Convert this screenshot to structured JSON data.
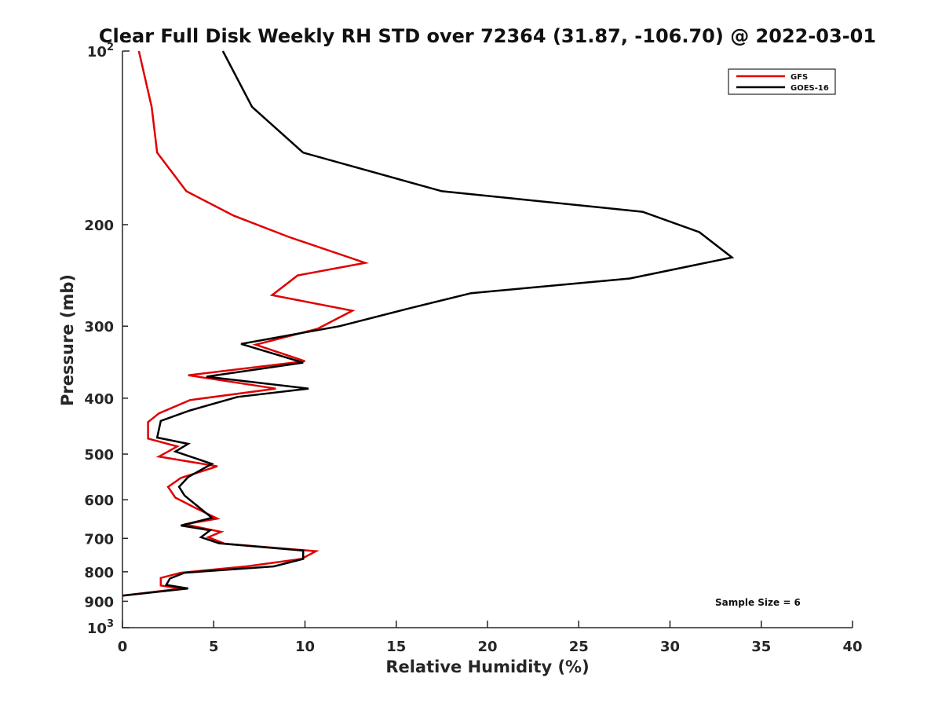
{
  "chart_data": {
    "type": "line",
    "title": "Clear Full Disk Weekly RH STD over 72364 (31.87, -106.70) @ 2022-03-01",
    "xlabel": "Relative Humidity (%)",
    "ylabel": "Pressure (mb)",
    "xlim": [
      0,
      40
    ],
    "ylim": [
      100,
      1000
    ],
    "y_scale": "log",
    "y_reversed": true,
    "x_ticks": [
      "0",
      "5",
      "10",
      "15",
      "20",
      "25",
      "30",
      "35",
      "40"
    ],
    "x_tick_values": [
      0,
      5,
      10,
      15,
      20,
      25,
      30,
      35,
      40
    ],
    "y_ticks": [
      {
        "value": 100,
        "base": "10",
        "exp": "2"
      },
      {
        "value": 200,
        "label": "200"
      },
      {
        "value": 300,
        "label": "300"
      },
      {
        "value": 400,
        "label": "400"
      },
      {
        "value": 500,
        "label": "500"
      },
      {
        "value": 600,
        "label": "600"
      },
      {
        "value": 700,
        "label": "700"
      },
      {
        "value": 800,
        "label": "800"
      },
      {
        "value": 900,
        "label": "900"
      },
      {
        "value": 1000,
        "base": "10",
        "exp": "3"
      }
    ],
    "grid": false,
    "legend_position": "top-right",
    "annotation": "Sample Size = 6",
    "series": [
      {
        "name": "GFS",
        "color": "#e00000",
        "points": [
          [
            0.9,
            100
          ],
          [
            1.6,
            125
          ],
          [
            1.9,
            150
          ],
          [
            3.5,
            175
          ],
          [
            6.1,
            193
          ],
          [
            9.1,
            210
          ],
          [
            13.3,
            233
          ],
          [
            9.6,
            245
          ],
          [
            8.2,
            265
          ],
          [
            12.6,
            282
          ],
          [
            10.7,
            303
          ],
          [
            7.3,
            323
          ],
          [
            10.0,
            345
          ],
          [
            3.6,
            365
          ],
          [
            8.4,
            385
          ],
          [
            3.7,
            403
          ],
          [
            2.0,
            425
          ],
          [
            1.4,
            440
          ],
          [
            1.4,
            470
          ],
          [
            3.0,
            485
          ],
          [
            2.0,
            505
          ],
          [
            5.2,
            525
          ],
          [
            3.2,
            550
          ],
          [
            2.5,
            570
          ],
          [
            2.9,
            595
          ],
          [
            4.0,
            620
          ],
          [
            5.2,
            647
          ],
          [
            3.4,
            662
          ],
          [
            5.4,
            682
          ],
          [
            4.7,
            697
          ],
          [
            5.6,
            715
          ],
          [
            10.6,
            737
          ],
          [
            9.8,
            760
          ],
          [
            6.8,
            783
          ],
          [
            3.2,
            803
          ],
          [
            2.1,
            820
          ],
          [
            2.1,
            845
          ],
          [
            3.2,
            856
          ],
          [
            0.0,
            880
          ]
        ]
      },
      {
        "name": "GOES-16",
        "color": "#000000",
        "points": [
          [
            5.5,
            100
          ],
          [
            7.1,
            125
          ],
          [
            9.9,
            150
          ],
          [
            17.5,
            175
          ],
          [
            28.5,
            190
          ],
          [
            31.6,
            206
          ],
          [
            33.4,
            228
          ],
          [
            27.8,
            248
          ],
          [
            19.1,
            263
          ],
          [
            15.6,
            280
          ],
          [
            11.9,
            300
          ],
          [
            6.5,
            322
          ],
          [
            9.9,
            347
          ],
          [
            4.6,
            367
          ],
          [
            10.2,
            385
          ],
          [
            6.3,
            398
          ],
          [
            3.7,
            420
          ],
          [
            2.1,
            438
          ],
          [
            1.9,
            468
          ],
          [
            3.6,
            480
          ],
          [
            2.9,
            495
          ],
          [
            4.9,
            520
          ],
          [
            3.6,
            548
          ],
          [
            3.1,
            570
          ],
          [
            3.4,
            590
          ],
          [
            4.1,
            615
          ],
          [
            4.9,
            645
          ],
          [
            3.2,
            665
          ],
          [
            4.8,
            678
          ],
          [
            4.3,
            697
          ],
          [
            5.3,
            714
          ],
          [
            9.9,
            735
          ],
          [
            9.9,
            760
          ],
          [
            8.3,
            783
          ],
          [
            3.4,
            803
          ],
          [
            2.6,
            822
          ],
          [
            2.4,
            843
          ],
          [
            3.6,
            855
          ],
          [
            0.0,
            880
          ]
        ]
      }
    ]
  }
}
